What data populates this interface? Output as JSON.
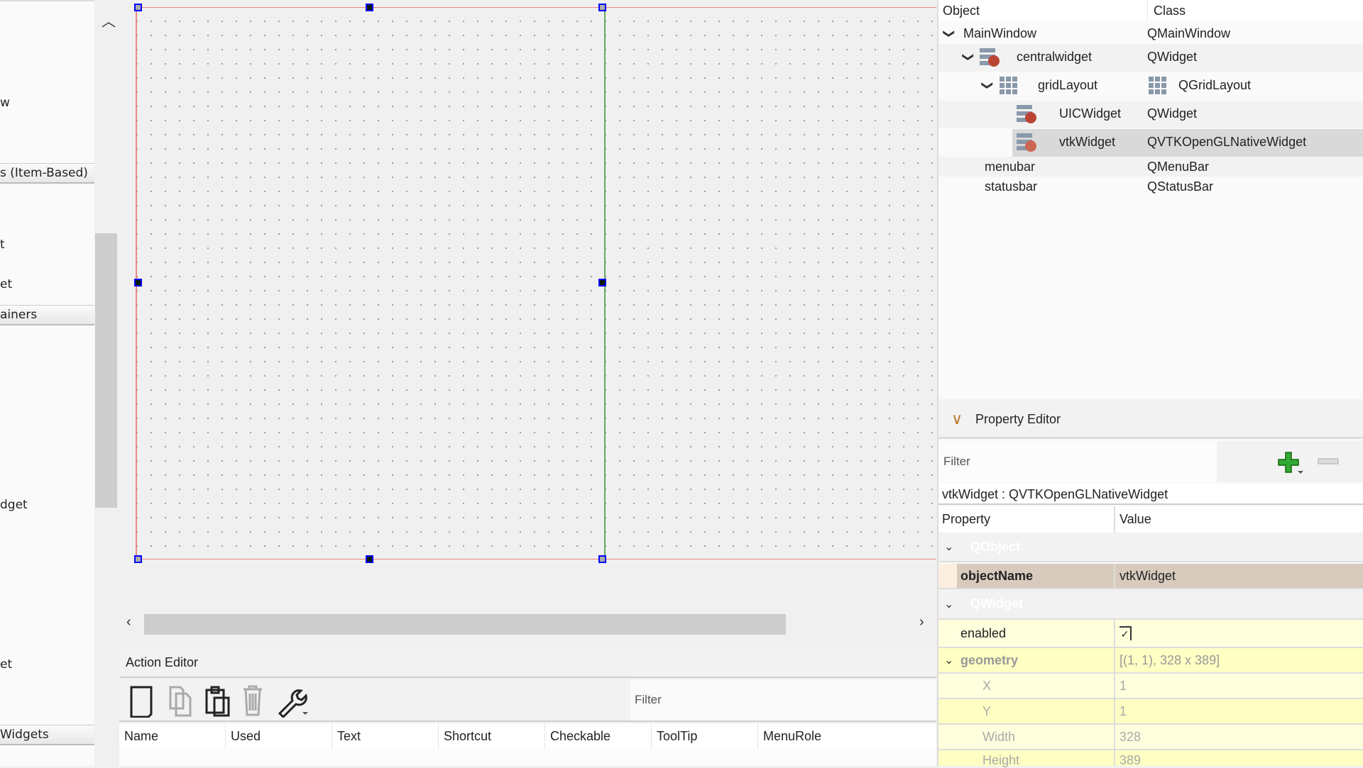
{
  "widget_box": {
    "items": [
      {
        "text": "w",
        "kind": "item"
      },
      {
        "text": "s (Item-Based)",
        "kind": "category"
      },
      {
        "text": "t",
        "kind": "item"
      },
      {
        "text": "et",
        "kind": "item"
      },
      {
        "text": "ainers",
        "kind": "category"
      },
      {
        "text": "dget",
        "kind": "item"
      },
      {
        "text": "et",
        "kind": "item"
      },
      {
        "text": "Widgets",
        "kind": "category"
      }
    ]
  },
  "action_editor": {
    "title": "Action Editor",
    "filter_placeholder": "Filter",
    "toolbar": [
      "new-action-icon",
      "copy-icon",
      "paste-icon",
      "delete-icon",
      "wrench-icon"
    ],
    "columns": [
      "Name",
      "Used",
      "Text",
      "Shortcut",
      "Checkable",
      "ToolTip",
      "MenuRole"
    ]
  },
  "object_inspector": {
    "headers": {
      "object": "Object",
      "class": "Class"
    },
    "rows": [
      {
        "name": "MainWindow",
        "class": "QMainWindow",
        "expanded": true
      },
      {
        "name": "centralwidget",
        "class": "QWidget",
        "expanded": true
      },
      {
        "name": "gridLayout",
        "class": "QGridLayout",
        "expanded": true
      },
      {
        "name": "UICWidget",
        "class": "QWidget"
      },
      {
        "name": "vtkWidget",
        "class": "QVTKOpenGLNativeWidget",
        "selected": true
      },
      {
        "name": "menubar",
        "class": "QMenuBar"
      },
      {
        "name": "statusbar",
        "class": "QStatusBar"
      }
    ]
  },
  "property_editor": {
    "title": "Property Editor",
    "filter_placeholder": "Filter",
    "object_label": "vtkWidget : QVTKOpenGLNativeWidget",
    "headers": {
      "property": "Property",
      "value": "Value"
    },
    "groups": {
      "qobject": "QObject",
      "qwidget": "QWidget"
    },
    "rows": {
      "objectName": {
        "key": "objectName",
        "value": "vtkWidget"
      },
      "enabled": {
        "key": "enabled",
        "checked": true
      },
      "geometry": {
        "key": "geometry",
        "value": "[(1, 1), 328 x 389]"
      },
      "x": {
        "key": "X",
        "value": "1"
      },
      "y": {
        "key": "Y",
        "value": "1"
      },
      "width": {
        "key": "Width",
        "value": "328"
      },
      "height": {
        "key": "Height",
        "value": "389"
      }
    }
  },
  "colors": {
    "accent": "#c07a30",
    "selection_handle": "#0000ff",
    "form_border": "#ee8888",
    "layout_line": "#66aa66",
    "property_highlight": "#d8cbbd",
    "property_yellow": "#ffffcc"
  }
}
